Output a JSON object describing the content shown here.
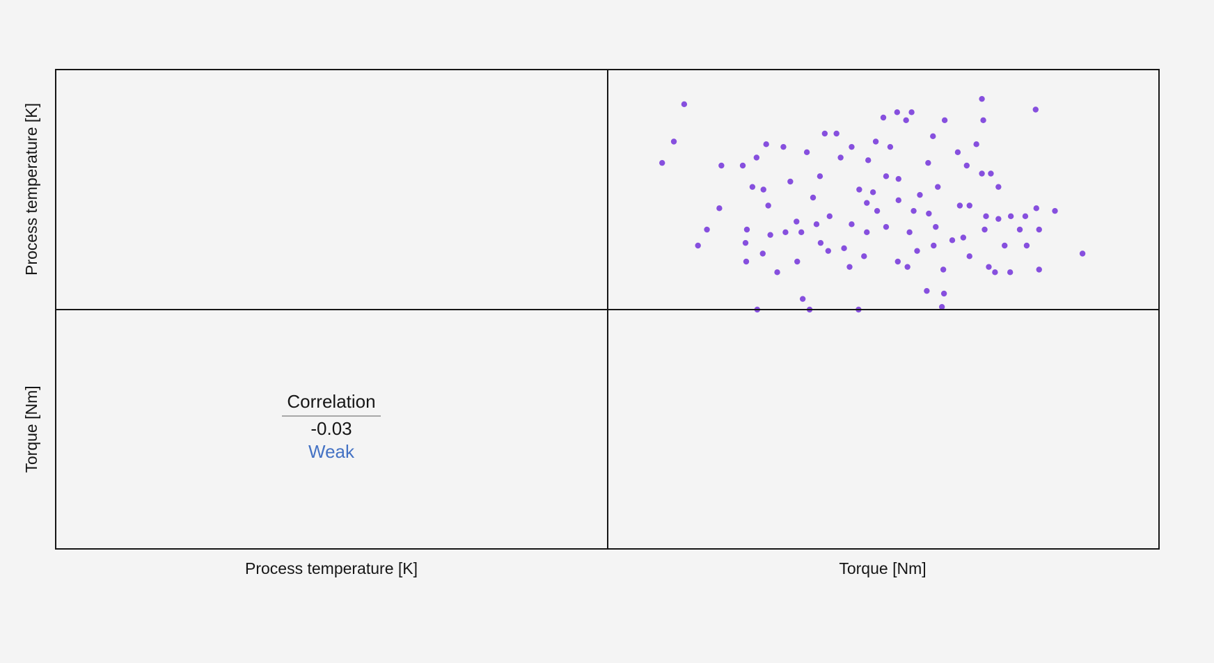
{
  "chart_data": {
    "type": "scatter",
    "variables": [
      "Process temperature [K]",
      "Torque [Nm]"
    ],
    "color": "#7a3ddb",
    "xlim": [
      0,
      80
    ],
    "ylim": [
      305,
      314
    ],
    "x": [
      11.1,
      9.6,
      7.9,
      14.4,
      13.1,
      16.2,
      16.5,
      19.6,
      21.6,
      23.0,
      25.5,
      21.0,
      22.6,
      23.3,
      20.2,
      20.0,
      20.1,
      21.7,
      24.6,
      23.6,
      22.5,
      26.5,
      27.4,
      28.3,
      29.3,
      28.9,
      31.5,
      33.2,
      30.8,
      29.8,
      28.1,
      27.5,
      30.9,
      32.2,
      35.4,
      33.8,
      35.1,
      36.4,
      37.2,
      37.6,
      37.8,
      38.9,
      40.0,
      42.0,
      44.1,
      43.3,
      41.0,
      40.4,
      38.5,
      39.1,
      40.4,
      42.1,
      43.5,
      42.2,
      44.4,
      45.3,
      46.3,
      48.5,
      48.8,
      48.7,
      47.3,
      47.6,
      46.6,
      47.9,
      46.5,
      47.2,
      48.9,
      50.8,
      52.1,
      52.5,
      51.6,
      52.5,
      54.3,
      54.5,
      53.5,
      54.3,
      55.6,
      56.7,
      54.9,
      56.7,
      54.7,
      55.3,
      56.2,
      57.6,
      58.4,
      58.5,
      59.8,
      60.8,
      60.6,
      62.1,
      62.2,
      62.6,
      62.6,
      64.9,
      68.9,
      35.4,
      36.5,
      34.3,
      32.0,
      30.3,
      42.2,
      43.8,
      44.9,
      50.0,
      51.1,
      37.6,
      25.8
    ],
    "y": [
      312.7,
      311.3,
      310.5,
      308.0,
      307.4,
      308.8,
      310.4,
      310.4,
      310.7,
      311.2,
      311.1,
      309.6,
      309.5,
      308.9,
      308.0,
      307.5,
      306.8,
      305.0,
      306.4,
      307.8,
      307.1,
      309.8,
      308.3,
      305.4,
      305.0,
      310.9,
      311.6,
      311.6,
      310.0,
      309.2,
      307.9,
      306.8,
      307.5,
      308.5,
      311.1,
      310.7,
      306.6,
      305.0,
      307.0,
      307.9,
      310.6,
      311.3,
      312.2,
      312.4,
      312.4,
      312.1,
      311.1,
      310.0,
      309.4,
      308.7,
      308.1,
      306.8,
      306.6,
      309.1,
      308.7,
      309.3,
      305.7,
      305.1,
      305.6,
      306.5,
      307.4,
      308.1,
      308.6,
      309.6,
      310.5,
      311.5,
      312.1,
      310.9,
      310.4,
      308.9,
      307.7,
      307.0,
      312.9,
      312.1,
      311.2,
      310.1,
      310.1,
      309.6,
      308.5,
      308.4,
      308.0,
      306.6,
      306.4,
      307.4,
      306.4,
      308.5,
      308.0,
      307.4,
      308.5,
      312.5,
      308.8,
      308.0,
      306.5,
      308.7,
      307.1,
      308.2,
      309.5,
      307.3,
      307.2,
      308.2,
      309.9,
      307.9,
      307.2,
      307.6,
      308.9,
      309.0,
      307.9
    ],
    "correlation": {
      "label": "Correlation",
      "value": -0.03,
      "strength": "Weak"
    }
  }
}
